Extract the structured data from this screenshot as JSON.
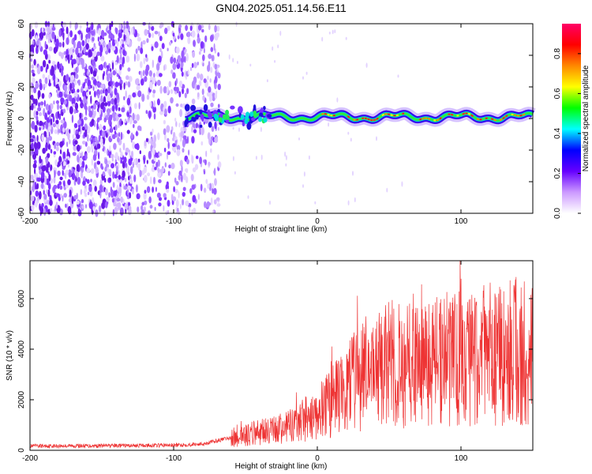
{
  "title": "GN04.2025.051.14.56.E11",
  "chart_data": [
    {
      "type": "heatmap",
      "name": "spectrogram",
      "xlabel": "Height of straight line (km)",
      "ylabel": "Frequency (Hz)",
      "xlim": [
        -200,
        150
      ],
      "ylim": [
        -60,
        60
      ],
      "xticks": [
        -200,
        -100,
        0,
        100
      ],
      "yticks": [
        60,
        40,
        20,
        0,
        -20,
        -40,
        -60
      ],
      "colorbar": {
        "label": "Normalized spectral amplitude",
        "range": [
          0.0,
          0.95
        ],
        "ticks": [
          0.0,
          0.2,
          0.4,
          0.6,
          0.8
        ],
        "colormap": [
          "#ffffff",
          "#cc99ff",
          "#6600ff",
          "#0000ff",
          "#00ffff",
          "#00ff00",
          "#ffff00",
          "#ff8800",
          "#ff0000",
          "#ff0066"
        ]
      },
      "noise_region_km": [
        -200,
        -68
      ],
      "signal_start_km": -92,
      "signal_frequency_hz": 1
    },
    {
      "type": "line",
      "name": "snr",
      "xlabel": "Height of straight line (km)",
      "ylabel": "SNR (10 * v/v)",
      "xlim": [
        -200,
        150
      ],
      "ylim": [
        0,
        7500
      ],
      "xticks": [
        -200,
        -100,
        0,
        100
      ],
      "yticks": [
        0,
        2000,
        4000,
        6000
      ],
      "color": "#ee3333",
      "envelope": {
        "x": [
          -200,
          -150,
          -100,
          -80,
          -60,
          -40,
          -20,
          0,
          20,
          30,
          50,
          80,
          100,
          120,
          150
        ],
        "y": [
          170,
          180,
          200,
          250,
          500,
          700,
          900,
          1500,
          2300,
          3000,
          3400,
          3500,
          3700,
          3800,
          4000
        ]
      }
    }
  ]
}
